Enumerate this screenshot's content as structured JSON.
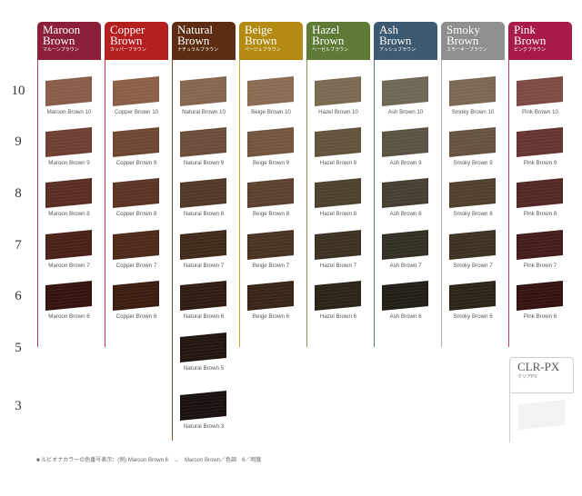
{
  "levels": [
    "10",
    "9",
    "8",
    "7",
    "6",
    "5",
    "3"
  ],
  "columns": [
    {
      "name": "Maroon Brown",
      "en": "Maroon\nBrown",
      "jp": "マルーンブラウン",
      "header_color": "#8c1f3a",
      "line_color": "#b03a55",
      "swatches": [
        {
          "label": "Maroon Brown 10",
          "color": "#8a5c4c"
        },
        {
          "label": "Maroon Brown 9",
          "color": "#6e3f32"
        },
        {
          "label": "Maroon Brown 8",
          "color": "#5a2d24"
        },
        {
          "label": "Maroon Brown 7",
          "color": "#4a2119"
        },
        {
          "label": "Maroon Brown 6",
          "color": "#351410"
        }
      ]
    },
    {
      "name": "Copper Brown",
      "en": "Copper\nBrown",
      "jp": "カッパーブラウン",
      "header_color": "#b3201f",
      "line_color": "#c83a36",
      "swatches": [
        {
          "label": "Copper Brown 10",
          "color": "#8b5f47"
        },
        {
          "label": "Copper Brown 9",
          "color": "#6f4632"
        },
        {
          "label": "Copper Brown 8",
          "color": "#5b3423"
        },
        {
          "label": "Copper Brown 7",
          "color": "#4d2a1a"
        },
        {
          "label": "Copper Brown 6",
          "color": "#3c1d12"
        }
      ]
    },
    {
      "name": "Natural Brown",
      "en": "Natural\nBrown",
      "jp": "ナチュラルブラウン",
      "header_color": "#5c2d12",
      "line_color": "#7a4a2a",
      "swatches": [
        {
          "label": "Natural Brown 10",
          "color": "#86664e"
        },
        {
          "label": "Natural Brown 9",
          "color": "#6b4e3a"
        },
        {
          "label": "Natural Brown 8",
          "color": "#523927"
        },
        {
          "label": "Natural Brown 7",
          "color": "#412a1b"
        },
        {
          "label": "Natural Brown 6",
          "color": "#2f1d13"
        },
        {
          "label": "Natural Brown 5",
          "color": "#221610"
        },
        {
          "label": "Natural Brown 3",
          "color": "#1a1210"
        }
      ]
    },
    {
      "name": "Beige Brown",
      "en": "Beige\nBrown",
      "jp": "ベージュブラウン",
      "header_color": "#b38a12",
      "line_color": "#c9a43a",
      "swatches": [
        {
          "label": "Beige Brown 10",
          "color": "#8a6c52"
        },
        {
          "label": "Beige Brown 9",
          "color": "#72553f"
        },
        {
          "label": "Beige Brown 8",
          "color": "#5c412e"
        },
        {
          "label": "Beige Brown 7",
          "color": "#4a3222"
        },
        {
          "label": "Beige Brown 6",
          "color": "#382518"
        }
      ]
    },
    {
      "name": "Hazel Brown",
      "en": "Hazel\nBrown",
      "jp": "ヘーゼルブラウン",
      "header_color": "#5f7a36",
      "line_color": "#7d9553",
      "swatches": [
        {
          "label": "Hazel Brown 10",
          "color": "#7a6a52"
        },
        {
          "label": "Hazel Brown 9",
          "color": "#62533d"
        },
        {
          "label": "Hazel Brown 8",
          "color": "#4d412f"
        },
        {
          "label": "Hazel Brown 7",
          "color": "#3c3223"
        },
        {
          "label": "Hazel Brown 6",
          "color": "#2b2418"
        }
      ]
    },
    {
      "name": "Ash Brown",
      "en": "Ash\nBrown",
      "jp": "アッシュブラウン",
      "header_color": "#3d5a73",
      "line_color": "#5c7890",
      "swatches": [
        {
          "label": "Ash Brown 10",
          "color": "#6f6656"
        },
        {
          "label": "Ash Brown 9",
          "color": "#5a5242"
        },
        {
          "label": "Ash Brown 8",
          "color": "#463f31"
        },
        {
          "label": "Ash Brown 7",
          "color": "#342f24"
        },
        {
          "label": "Ash Brown 6",
          "color": "#221f18"
        }
      ]
    },
    {
      "name": "Smoky Brown",
      "en": "Smoky\nBrown",
      "jp": "スモーキーブラウン",
      "header_color": "#8f8f8f",
      "line_color": "#b0b0b0",
      "swatches": [
        {
          "label": "Smoky Brown 10",
          "color": "#7b6852"
        },
        {
          "label": "Smoky Brown 9",
          "color": "#65533f"
        },
        {
          "label": "Smoky Brown 8",
          "color": "#50412f"
        },
        {
          "label": "Smoky Brown 7",
          "color": "#3e3223"
        },
        {
          "label": "Smoky Brown 6",
          "color": "#2d2418"
        }
      ]
    },
    {
      "name": "Pink Brown",
      "en": "Pink\nBrown",
      "jp": "ピンクブラウン",
      "header_color": "#a81a4a",
      "line_color": "#c23c68",
      "swatches": [
        {
          "label": "Pink Brown 10",
          "color": "#7d4a45"
        },
        {
          "label": "Pink Brown 9",
          "color": "#663532"
        },
        {
          "label": "Pink Brown 8",
          "color": "#532825"
        },
        {
          "label": "Pink Brown 7",
          "color": "#431d1b"
        },
        {
          "label": "Pink Brown 6",
          "color": "#331412"
        }
      ]
    }
  ],
  "clr": {
    "title": "CLR-PX",
    "sub": "クリアPX",
    "color": "#f2f2f2"
  },
  "footnote": "■ ルビオナカラーの色番号表示：(例) Maroon Brown 6　→　Maroon Brown／色調　6／明度"
}
